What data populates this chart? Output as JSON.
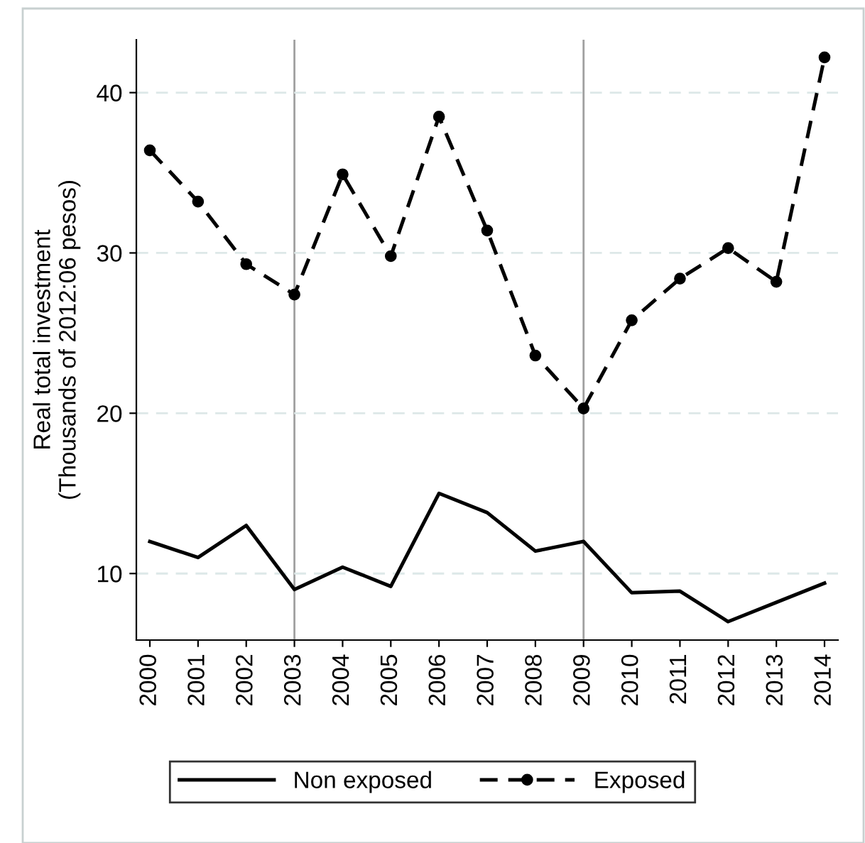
{
  "chart_data": {
    "type": "line",
    "ylabel": "Real total investment\n(Thousands of 2012:06 pesos)",
    "x": [
      2000,
      2001,
      2002,
      2003,
      2004,
      2005,
      2006,
      2007,
      2008,
      2009,
      2010,
      2011,
      2012,
      2013,
      2014
    ],
    "series": [
      {
        "name": "Non exposed",
        "color": "#000000",
        "line_style": "solid",
        "marker": "none",
        "values": [
          12.0,
          11.0,
          13.0,
          9.0,
          10.4,
          9.2,
          15.0,
          13.8,
          11.4,
          12.0,
          8.8,
          8.9,
          7.0,
          8.2,
          9.4
        ]
      },
      {
        "name": "Exposed",
        "color": "#000000",
        "line_style": "dashed",
        "marker": "circle",
        "values": [
          36.4,
          33.2,
          29.3,
          27.4,
          34.9,
          29.8,
          38.5,
          31.4,
          23.6,
          20.3,
          25.8,
          28.4,
          30.3,
          28.2,
          42.2
        ]
      }
    ],
    "xlim": [
      1999.72,
      2014.28
    ],
    "xticks": [
      2000,
      2001,
      2002,
      2003,
      2004,
      2005,
      2006,
      2007,
      2008,
      2009,
      2010,
      2011,
      2012,
      2013,
      2014
    ],
    "ylim": [
      5.85,
      43.3
    ],
    "yticks": [
      10,
      20,
      30,
      40
    ],
    "ref_lines": [
      {
        "axis": "x",
        "value": 2003,
        "color": "#a0a0a0"
      },
      {
        "axis": "x",
        "value": 2009,
        "color": "#a0a0a0"
      }
    ],
    "grid": "y",
    "legend": "bottom"
  }
}
